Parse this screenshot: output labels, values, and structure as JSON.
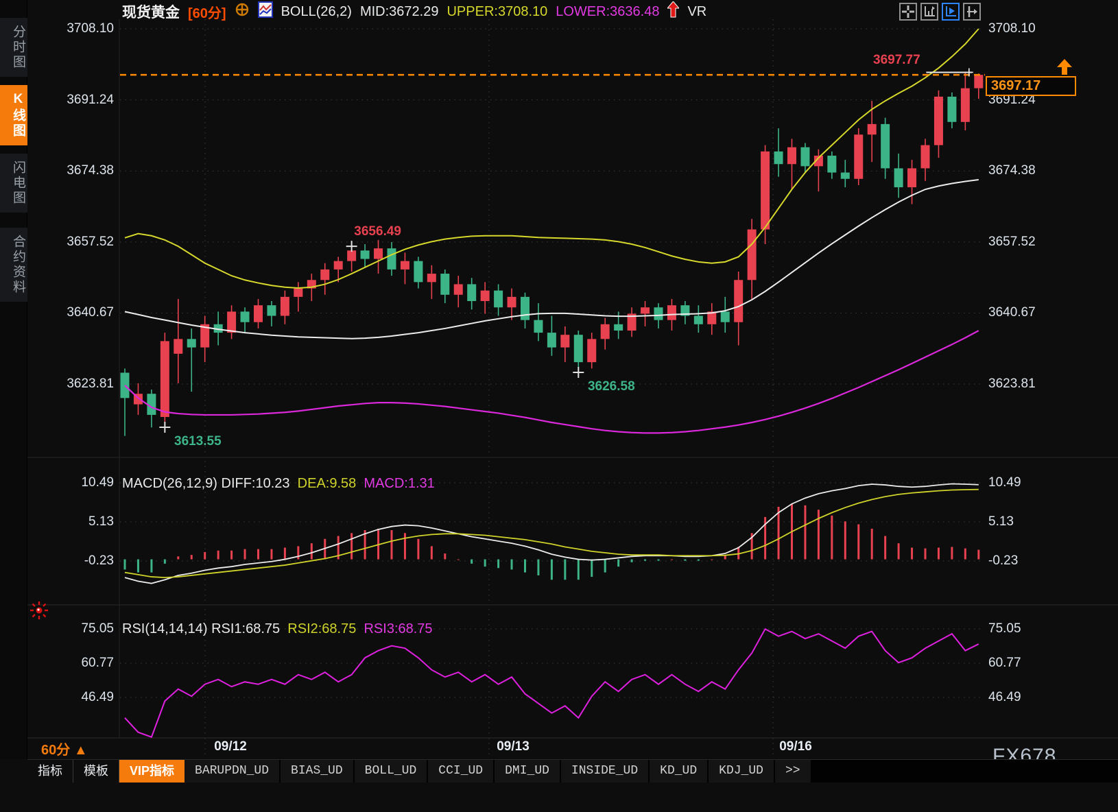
{
  "header": {
    "symbol": "现货黄金",
    "timeframe": "[60分]",
    "indicator_title": "BOLL(26,2)",
    "mid": "MID:3672.29",
    "upper": "UPPER:3708.10",
    "lower": "LOWER:3636.48",
    "vr": "VR"
  },
  "sidebar": {
    "items": [
      {
        "label": "分时图",
        "active": false
      },
      {
        "label": "K线图",
        "active": true
      },
      {
        "label": "闪电图",
        "active": false
      },
      {
        "label": "合约资料",
        "active": false
      }
    ]
  },
  "toolbar": {
    "icons": [
      "move-crosshair-icon",
      "axis-scale-icon",
      "axis-play-icon",
      "pan-right-icon"
    ],
    "active_index": 2
  },
  "price_tag": {
    "value": "3697.17",
    "color": "#ff9416",
    "border": "#ff8a00"
  },
  "panes": {
    "macd": {
      "title": "MACD(26,12,9)",
      "diff": "DIFF:10.23",
      "dea": "DEA:9.58",
      "macd": "MACD:1.31"
    },
    "rsi": {
      "title": "RSI(14,14,14)",
      "rsi1": "RSI1:68.75",
      "rsi2": "RSI2:68.75",
      "rsi3": "RSI3:68.75"
    }
  },
  "bottom": {
    "timeframe": "60分",
    "timeframe_arrow": "▲",
    "tabs": [
      {
        "label": "指标",
        "active": false,
        "cjk": true
      },
      {
        "label": "模板",
        "active": false,
        "cjk": true
      },
      {
        "label": "VIP指标",
        "active": true,
        "cjk": true
      },
      {
        "label": "BARUPDN_UD",
        "active": false,
        "cjk": false
      },
      {
        "label": "BIAS_UD",
        "active": false,
        "cjk": false
      },
      {
        "label": "BOLL_UD",
        "active": false,
        "cjk": false
      },
      {
        "label": "CCI_UD",
        "active": false,
        "cjk": false
      },
      {
        "label": "DMI_UD",
        "active": false,
        "cjk": false
      },
      {
        "label": "INSIDE_UD",
        "active": false,
        "cjk": false
      },
      {
        "label": "KD_UD",
        "active": false,
        "cjk": false
      },
      {
        "label": "KDJ_UD",
        "active": false,
        "cjk": false
      },
      {
        "label": ">>",
        "active": false,
        "cjk": false
      }
    ]
  },
  "watermark": "FX678",
  "chart_data": [
    {
      "type": "candlestick",
      "title": "现货黄金 60分 K线 + BOLL(26,2)",
      "y_ticks": [
        "3708.10",
        "3691.24",
        "3674.38",
        "3657.52",
        "3640.67",
        "3623.81"
      ],
      "ylim": [
        3611.0,
        3711.0
      ],
      "x_dates": [
        "09/12",
        "09/13",
        "09/16"
      ],
      "current_price": 3697.17,
      "last_high": 3697.77,
      "colors": {
        "up": "#e8414f",
        "down": "#3cb487",
        "upper": "#d6d82b",
        "mid": "#ececec",
        "lower": "#dc28dc",
        "current_line": "#ff8a00",
        "ann_up": "#e8414f",
        "ann_down": "#3db489"
      },
      "candles": [
        [
          3626.5,
          3627.5,
          3611.5,
          3620.5
        ],
        [
          3619.0,
          3624.0,
          3616.5,
          3621.5
        ],
        [
          3621.5,
          3622.5,
          3613.5,
          3616.5
        ],
        [
          3616.0,
          3636.0,
          3613.55,
          3634.0
        ],
        [
          3631.0,
          3644.0,
          3624.0,
          3634.5
        ],
        [
          3634.5,
          3637.0,
          3622.0,
          3632.5
        ],
        [
          3632.5,
          3640.0,
          3629.0,
          3638.0
        ],
        [
          3638.0,
          3641.0,
          3633.0,
          3636.0
        ],
        [
          3636.0,
          3642.5,
          3634.5,
          3641.0
        ],
        [
          3641.0,
          3642.0,
          3636.0,
          3638.5
        ],
        [
          3638.5,
          3644.0,
          3637.0,
          3642.5
        ],
        [
          3642.5,
          3643.5,
          3637.5,
          3640.0
        ],
        [
          3640.0,
          3646.0,
          3638.0,
          3644.5
        ],
        [
          3644.5,
          3648.0,
          3641.0,
          3646.5
        ],
        [
          3646.5,
          3650.0,
          3643.5,
          3648.5
        ],
        [
          3648.5,
          3652.5,
          3645.0,
          3651.0
        ],
        [
          3651.0,
          3654.0,
          3648.0,
          3653.0
        ],
        [
          3653.0,
          3656.49,
          3650.5,
          3655.5
        ],
        [
          3655.5,
          3657.0,
          3651.5,
          3653.5
        ],
        [
          3653.5,
          3658.0,
          3650.0,
          3656.0
        ],
        [
          3656.0,
          3657.5,
          3649.5,
          3651.0
        ],
        [
          3651.0,
          3655.0,
          3647.5,
          3653.0
        ],
        [
          3653.0,
          3654.0,
          3646.5,
          3648.0
        ],
        [
          3648.0,
          3652.0,
          3644.0,
          3650.0
        ],
        [
          3650.0,
          3651.0,
          3643.0,
          3645.0
        ],
        [
          3645.0,
          3649.5,
          3642.0,
          3647.5
        ],
        [
          3647.5,
          3649.0,
          3641.5,
          3643.5
        ],
        [
          3643.5,
          3648.0,
          3640.5,
          3646.0
        ],
        [
          3646.0,
          3647.5,
          3640.0,
          3642.0
        ],
        [
          3642.0,
          3646.5,
          3639.0,
          3644.5
        ],
        [
          3644.5,
          3645.5,
          3637.0,
          3639.0
        ],
        [
          3639.0,
          3643.0,
          3634.0,
          3636.0
        ],
        [
          3636.0,
          3640.0,
          3630.5,
          3632.5
        ],
        [
          3632.5,
          3637.5,
          3629.0,
          3635.5
        ],
        [
          3635.5,
          3636.5,
          3626.58,
          3629.0
        ],
        [
          3629.0,
          3636.0,
          3627.5,
          3634.5
        ],
        [
          3634.5,
          3639.5,
          3632.0,
          3638.0
        ],
        [
          3638.0,
          3641.0,
          3634.5,
          3636.5
        ],
        [
          3636.5,
          3642.0,
          3635.0,
          3640.5
        ],
        [
          3640.5,
          3643.5,
          3637.5,
          3642.0
        ],
        [
          3642.0,
          3643.0,
          3637.0,
          3639.0
        ],
        [
          3639.0,
          3644.0,
          3636.5,
          3642.5
        ],
        [
          3642.5,
          3643.5,
          3638.0,
          3640.0
        ],
        [
          3640.0,
          3642.5,
          3636.0,
          3638.0
        ],
        [
          3638.0,
          3643.0,
          3635.5,
          3641.0
        ],
        [
          3641.0,
          3644.5,
          3636.0,
          3638.5
        ],
        [
          3638.5,
          3650.5,
          3633.0,
          3648.5
        ],
        [
          3648.5,
          3663.0,
          3644.0,
          3660.5
        ],
        [
          3660.5,
          3680.5,
          3657.0,
          3679.0
        ],
        [
          3679.0,
          3684.5,
          3673.0,
          3676.0
        ],
        [
          3676.0,
          3682.0,
          3670.0,
          3680.0
        ],
        [
          3680.0,
          3681.0,
          3674.0,
          3675.5
        ],
        [
          3675.5,
          3679.5,
          3669.5,
          3678.0
        ],
        [
          3678.0,
          3679.0,
          3672.5,
          3674.0
        ],
        [
          3674.0,
          3677.0,
          3670.5,
          3672.5
        ],
        [
          3672.5,
          3684.5,
          3671.0,
          3683.0
        ],
        [
          3683.0,
          3691.0,
          3676.5,
          3685.5
        ],
        [
          3685.5,
          3687.0,
          3672.5,
          3675.0
        ],
        [
          3675.0,
          3678.5,
          3668.0,
          3670.5
        ],
        [
          3670.5,
          3677.0,
          3666.5,
          3675.0
        ],
        [
          3675.0,
          3682.0,
          3672.0,
          3680.5
        ],
        [
          3680.5,
          3693.5,
          3677.5,
          3692.0
        ],
        [
          3692.0,
          3693.0,
          3684.5,
          3686.0
        ],
        [
          3686.0,
          3697.77,
          3684.0,
          3694.0
        ],
        [
          3694.0,
          3697.5,
          3691.5,
          3697.17
        ]
      ],
      "boll": {
        "upper": [
          3658.5,
          3659.5,
          3659,
          3658,
          3656.5,
          3654.5,
          3652.5,
          3651,
          3649.5,
          3648.5,
          3647.8,
          3647.2,
          3646.8,
          3646.6,
          3646.8,
          3647.5,
          3648.6,
          3650,
          3651.5,
          3653,
          3654.5,
          3655.8,
          3656.8,
          3657.6,
          3658.2,
          3658.6,
          3658.9,
          3659,
          3659,
          3659,
          3658.8,
          3658.6,
          3658.5,
          3658.4,
          3658.3,
          3658.2,
          3658,
          3657.6,
          3657,
          3656.2,
          3655.2,
          3654.2,
          3653.4,
          3652.8,
          3652.5,
          3652.8,
          3654,
          3657,
          3661,
          3665.5,
          3670,
          3674,
          3677.5,
          3680.5,
          3683.5,
          3686.5,
          3689,
          3691,
          3692.8,
          3694.5,
          3696.5,
          3698.8,
          3701.5,
          3704.5,
          3708.1
        ],
        "mid": [
          3641,
          3640.3,
          3639.6,
          3639,
          3638.4,
          3637.8,
          3637.3,
          3636.8,
          3636.4,
          3636,
          3635.7,
          3635.4,
          3635.2,
          3635,
          3634.9,
          3634.8,
          3634.7,
          3634.6,
          3634.7,
          3634.9,
          3635.2,
          3635.6,
          3636,
          3636.5,
          3637,
          3637.6,
          3638.2,
          3638.8,
          3639.3,
          3639.8,
          3640.2,
          3640.5,
          3640.6,
          3640.6,
          3640.4,
          3640.2,
          3640,
          3639.9,
          3639.9,
          3640,
          3640.1,
          3640.3,
          3640.4,
          3640.5,
          3640.7,
          3641.2,
          3642.2,
          3643.8,
          3645.8,
          3648,
          3650.3,
          3652.6,
          3654.9,
          3657.1,
          3659.2,
          3661.3,
          3663.3,
          3665.2,
          3667,
          3668.6,
          3670,
          3670.8,
          3671.4,
          3671.9,
          3672.3
        ],
        "lower": [
          3623.5,
          3620.5,
          3618.3,
          3617.2,
          3616.8,
          3616.6,
          3616.5,
          3616.5,
          3616.5,
          3616.6,
          3616.7,
          3616.9,
          3617.1,
          3617.4,
          3617.8,
          3618.2,
          3618.6,
          3618.9,
          3619.2,
          3619.4,
          3619.4,
          3619.3,
          3619.1,
          3618.8,
          3618.5,
          3618.1,
          3617.7,
          3617.3,
          3616.9,
          3616.4,
          3615.9,
          3615.3,
          3614.7,
          3614.2,
          3613.7,
          3613.2,
          3612.8,
          3612.5,
          3612.3,
          3612.2,
          3612.2,
          3612.3,
          3612.5,
          3612.8,
          3613.2,
          3613.6,
          3614.1,
          3614.7,
          3615.4,
          3616.2,
          3617.1,
          3618.1,
          3619.2,
          3620.4,
          3621.7,
          3623,
          3624.4,
          3625.8,
          3627.2,
          3628.7,
          3630.2,
          3631.7,
          3633.2,
          3634.8,
          3636.48
        ]
      },
      "annotations": [
        {
          "text": "3697.77",
          "price": 3697.77,
          "candle": 63,
          "placement": "above-left",
          "color": "#e8414f",
          "marker": false
        },
        {
          "text": "3656.49",
          "price": 3656.49,
          "candle": 17,
          "placement": "above",
          "color": "#e8414f",
          "marker": true
        },
        {
          "text": "3626.58",
          "price": 3626.58,
          "candle": 34,
          "placement": "below",
          "color": "#3db489",
          "marker": true
        },
        {
          "text": "3613.55",
          "price": 3613.55,
          "candle": 3,
          "placement": "below",
          "color": "#3db489",
          "marker": true
        }
      ]
    },
    {
      "type": "bar",
      "title": "MACD(26,12,9)",
      "y_ticks": [
        "10.49",
        "5.13",
        "-0.23"
      ],
      "ylim": [
        -4.5,
        11.5
      ],
      "series": [
        {
          "name": "DIFF",
          "color": "#ececec",
          "values": [
            -2.5,
            -3.0,
            -3.3,
            -2.8,
            -2.2,
            -1.9,
            -1.5,
            -1.2,
            -1.0,
            -0.7,
            -0.5,
            -0.3,
            0.0,
            0.4,
            0.9,
            1.5,
            2.1,
            2.8,
            3.5,
            4.1,
            4.5,
            4.7,
            4.6,
            4.3,
            3.9,
            3.5,
            3.1,
            2.8,
            2.5,
            2.2,
            1.8,
            1.3,
            0.7,
            0.3,
            0.0,
            -0.1,
            0.0,
            0.2,
            0.4,
            0.5,
            0.5,
            0.5,
            0.4,
            0.4,
            0.5,
            0.8,
            1.6,
            3.0,
            4.8,
            6.4,
            7.6,
            8.4,
            9.0,
            9.4,
            9.7,
            10.1,
            10.3,
            10.2,
            10.0,
            9.9,
            10.0,
            10.2,
            10.35,
            10.3,
            10.23
          ]
        },
        {
          "name": "DEA",
          "color": "#cfd32a",
          "values": [
            -1.8,
            -2.1,
            -2.4,
            -2.5,
            -2.4,
            -2.2,
            -2.0,
            -1.8,
            -1.6,
            -1.4,
            -1.2,
            -1.0,
            -0.8,
            -0.5,
            -0.2,
            0.1,
            0.5,
            1.0,
            1.5,
            2.0,
            2.5,
            2.9,
            3.2,
            3.4,
            3.5,
            3.5,
            3.4,
            3.3,
            3.1,
            2.9,
            2.7,
            2.4,
            2.1,
            1.7,
            1.4,
            1.1,
            0.9,
            0.7,
            0.6,
            0.6,
            0.6,
            0.5,
            0.5,
            0.5,
            0.5,
            0.55,
            0.75,
            1.2,
            1.9,
            2.8,
            3.8,
            4.7,
            5.6,
            6.4,
            7.1,
            7.7,
            8.2,
            8.6,
            8.9,
            9.1,
            9.25,
            9.4,
            9.5,
            9.55,
            9.58
          ]
        },
        {
          "name": "MACD-histogram",
          "color_up": "#e8414f",
          "color_down": "#3cb487",
          "values": [
            -1.4,
            -1.8,
            -1.8,
            -0.6,
            0.4,
            0.6,
            1.0,
            1.2,
            1.2,
            1.4,
            1.4,
            1.4,
            1.6,
            1.8,
            2.2,
            2.8,
            3.2,
            3.6,
            4.0,
            4.2,
            4.0,
            3.6,
            2.8,
            1.8,
            0.8,
            0.0,
            -0.6,
            -1.0,
            -1.2,
            -1.4,
            -1.8,
            -2.2,
            -2.8,
            -2.8,
            -2.8,
            -2.4,
            -1.8,
            -1.0,
            -0.4,
            -0.2,
            -0.2,
            0.0,
            -0.2,
            -0.2,
            0.0,
            0.5,
            1.7,
            3.6,
            5.8,
            7.2,
            7.6,
            7.4,
            6.8,
            6.0,
            5.2,
            4.8,
            4.2,
            3.2,
            2.2,
            1.6,
            1.5,
            1.6,
            1.7,
            1.5,
            1.31
          ]
        }
      ]
    },
    {
      "type": "line",
      "title": "RSI(14,14,14)",
      "y_ticks": [
        "75.05",
        "60.77",
        "46.49"
      ],
      "ylim": [
        28,
        80
      ],
      "series": [
        {
          "name": "RSI1",
          "color": "#e020e0",
          "values": [
            38,
            32,
            30,
            45,
            50,
            47,
            52,
            54,
            51,
            53,
            52,
            54,
            52,
            56,
            54,
            57,
            53,
            56,
            63,
            66,
            68,
            67,
            63,
            58,
            55,
            57,
            53,
            56,
            52,
            55,
            48,
            44,
            40,
            43,
            38,
            47,
            53,
            49,
            54,
            56,
            52,
            56,
            52,
            49,
            53,
            50,
            58,
            65,
            75,
            72,
            74,
            71,
            73,
            70,
            67,
            72,
            74,
            66,
            61,
            63,
            67,
            70,
            73,
            66,
            68.75
          ]
        }
      ]
    }
  ]
}
